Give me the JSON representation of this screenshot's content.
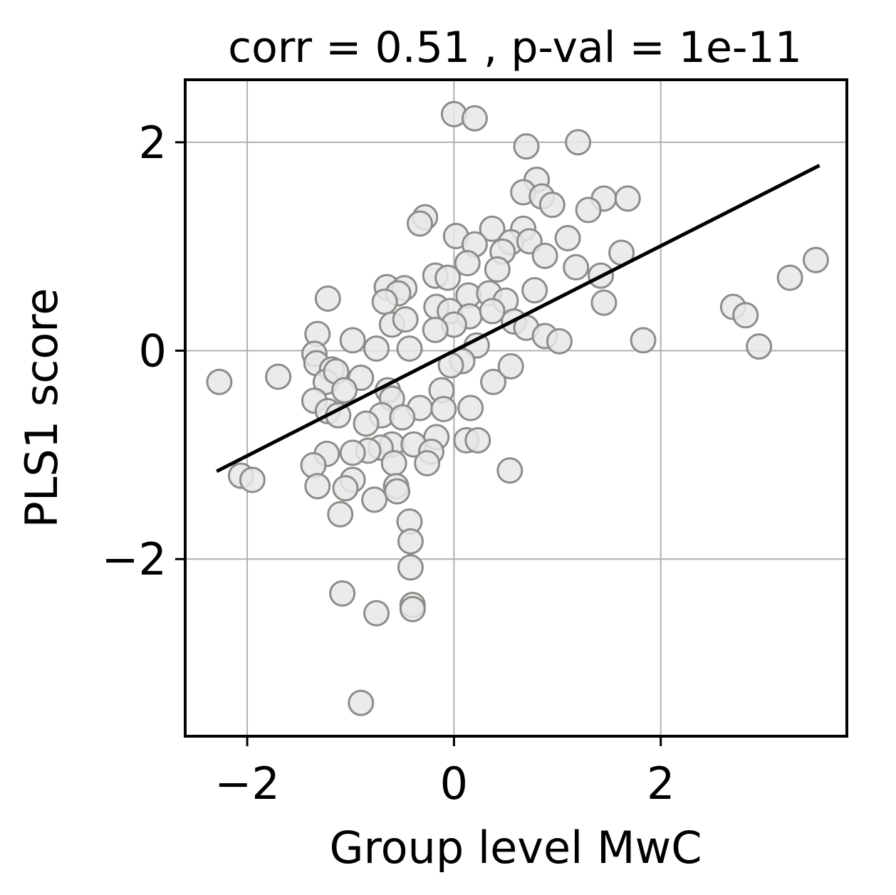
{
  "chart_data": {
    "type": "scatter",
    "title": "corr = 0.51 , p-val = 1e-11",
    "xlabel": "Group level MwC",
    "ylabel": "PLS1 score",
    "xlim": [
      -2.6,
      3.8
    ],
    "ylim": [
      -3.7,
      2.6
    ],
    "xticks": [
      -2,
      0,
      2
    ],
    "yticks": [
      -2,
      0,
      2
    ],
    "xtick_labels": [
      "−2",
      "0",
      "2"
    ],
    "ytick_labels": [
      "−2",
      "0",
      "2"
    ],
    "grid": true,
    "colors": {
      "marker_fill": "#e8e8e8",
      "marker_edge": "#8c8c88",
      "fit_line": "#000000",
      "grid": "#b0b0b0"
    },
    "fit_line": {
      "x": [
        -2.28,
        3.52
      ],
      "y": [
        -1.15,
        1.77
      ]
    },
    "points": [
      [
        0.0,
        2.27
      ],
      [
        0.2,
        2.23
      ],
      [
        1.2,
        2.0
      ],
      [
        0.7,
        1.96
      ],
      [
        0.8,
        1.64
      ],
      [
        0.67,
        1.52
      ],
      [
        0.85,
        1.48
      ],
      [
        0.95,
        1.4
      ],
      [
        1.45,
        1.46
      ],
      [
        1.68,
        1.46
      ],
      [
        1.3,
        1.35
      ],
      [
        -0.28,
        1.28
      ],
      [
        -0.33,
        1.22
      ],
      [
        0.37,
        1.17
      ],
      [
        0.67,
        1.17
      ],
      [
        0.02,
        1.1
      ],
      [
        1.1,
        1.08
      ],
      [
        0.2,
        1.02
      ],
      [
        0.55,
        1.04
      ],
      [
        0.73,
        1.05
      ],
      [
        0.47,
        0.95
      ],
      [
        0.88,
        0.91
      ],
      [
        1.62,
        0.94
      ],
      [
        0.13,
        0.84
      ],
      [
        1.18,
        0.8
      ],
      [
        1.42,
        0.72
      ],
      [
        3.5,
        0.87
      ],
      [
        3.25,
        0.7
      ],
      [
        0.42,
        0.78
      ],
      [
        -0.18,
        0.72
      ],
      [
        -0.06,
        0.7
      ],
      [
        -0.65,
        0.61
      ],
      [
        -0.48,
        0.6
      ],
      [
        -0.54,
        0.55
      ],
      [
        0.78,
        0.58
      ],
      [
        0.14,
        0.53
      ],
      [
        0.34,
        0.55
      ],
      [
        -1.22,
        0.5
      ],
      [
        -0.67,
        0.47
      ],
      [
        0.5,
        0.48
      ],
      [
        1.45,
        0.46
      ],
      [
        -0.17,
        0.42
      ],
      [
        -0.04,
        0.38
      ],
      [
        0.15,
        0.33
      ],
      [
        0.37,
        0.38
      ],
      [
        2.7,
        0.42
      ],
      [
        2.82,
        0.34
      ],
      [
        -0.6,
        0.25
      ],
      [
        -0.47,
        0.3
      ],
      [
        0.0,
        0.25
      ],
      [
        0.58,
        0.28
      ],
      [
        -0.18,
        0.2
      ],
      [
        0.7,
        0.22
      ],
      [
        0.88,
        0.14
      ],
      [
        -1.32,
        0.16
      ],
      [
        -0.98,
        0.1
      ],
      [
        1.02,
        0.09
      ],
      [
        1.83,
        0.1
      ],
      [
        -0.43,
        0.02
      ],
      [
        0.22,
        0.05
      ],
      [
        -0.75,
        0.02
      ],
      [
        2.95,
        0.04
      ],
      [
        -1.35,
        -0.03
      ],
      [
        -1.33,
        -0.12
      ],
      [
        0.08,
        -0.1
      ],
      [
        -0.03,
        -0.14
      ],
      [
        -1.18,
        -0.18
      ],
      [
        -1.24,
        -0.3
      ],
      [
        -1.14,
        -0.2
      ],
      [
        -0.9,
        -0.26
      ],
      [
        0.38,
        -0.3
      ],
      [
        0.55,
        -0.15
      ],
      [
        -1.7,
        -0.25
      ],
      [
        -2.27,
        -0.3
      ],
      [
        -1.06,
        -0.38
      ],
      [
        -0.12,
        -0.38
      ],
      [
        -0.64,
        -0.38
      ],
      [
        -0.6,
        -0.46
      ],
      [
        -1.35,
        -0.48
      ],
      [
        -0.33,
        -0.55
      ],
      [
        -0.1,
        -0.56
      ],
      [
        0.16,
        -0.55
      ],
      [
        -1.22,
        -0.58
      ],
      [
        -1.12,
        -0.62
      ],
      [
        -0.7,
        -0.62
      ],
      [
        -0.5,
        -0.64
      ],
      [
        -0.85,
        -0.7
      ],
      [
        -0.17,
        -0.83
      ],
      [
        -0.6,
        -0.9
      ],
      [
        0.12,
        -0.86
      ],
      [
        0.23,
        -0.86
      ],
      [
        -0.39,
        -0.9
      ],
      [
        -0.71,
        -0.93
      ],
      [
        -0.22,
        -0.97
      ],
      [
        -0.83,
        -0.96
      ],
      [
        -1.23,
        -0.99
      ],
      [
        -0.98,
        -0.98
      ],
      [
        -0.26,
        -1.08
      ],
      [
        -0.58,
        -1.08
      ],
      [
        -1.36,
        -1.1
      ],
      [
        0.54,
        -1.15
      ],
      [
        -2.06,
        -1.2
      ],
      [
        -1.95,
        -1.24
      ],
      [
        -0.98,
        -1.24
      ],
      [
        -1.32,
        -1.3
      ],
      [
        -1.05,
        -1.32
      ],
      [
        -0.56,
        -1.3
      ],
      [
        -0.55,
        -1.35
      ],
      [
        -0.77,
        -1.43
      ],
      [
        -1.1,
        -1.57
      ],
      [
        -0.43,
        -1.64
      ],
      [
        -0.42,
        -1.83
      ],
      [
        -0.42,
        -2.08
      ],
      [
        -1.08,
        -2.33
      ],
      [
        -0.75,
        -2.52
      ],
      [
        -0.4,
        -2.44
      ],
      [
        -0.4,
        -2.48
      ],
      [
        -0.9,
        -3.38
      ]
    ]
  }
}
